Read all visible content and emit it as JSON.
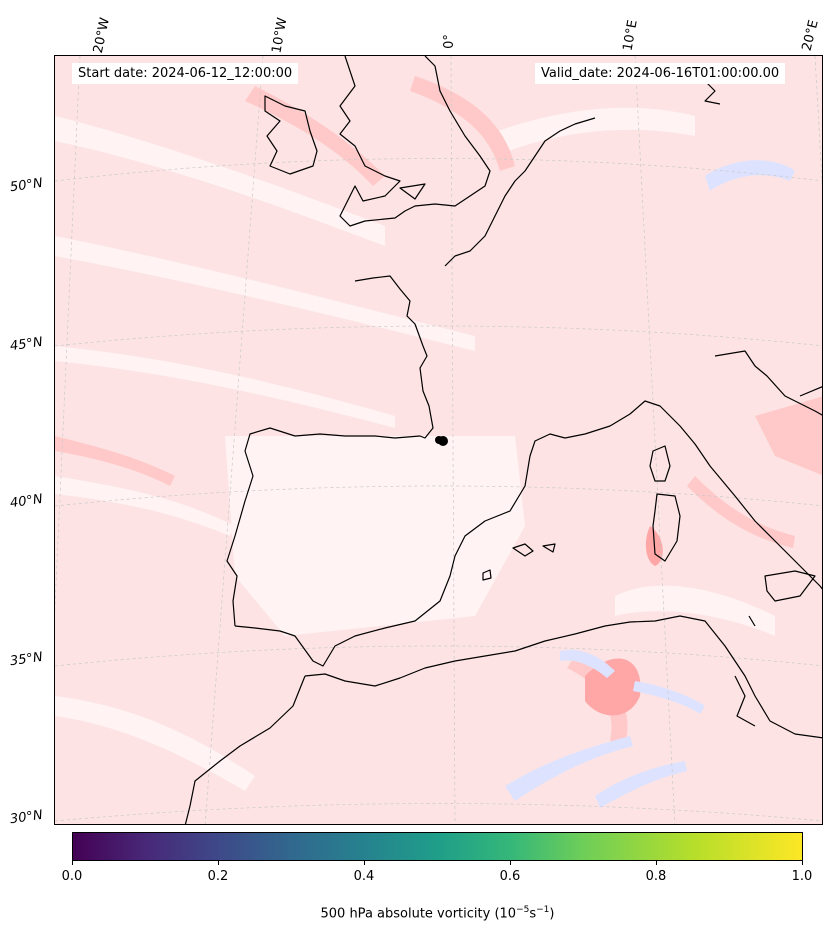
{
  "header": {
    "start_date": "Start date: 2024-06-12_12:00:00",
    "valid_date": "Valid_date: 2024-06-16T01:00:00.00"
  },
  "map": {
    "projection": "lambert-conic",
    "background_field": "500 hPa absolute vorticity",
    "colors": {
      "base_pink": "#fde0e0",
      "light_pink": "#fff0f0",
      "strong_pink": "#ffaaaa",
      "blue_patch": "#dbe3ff",
      "coastline": "#000000",
      "gridline": "#bbbbbb"
    },
    "lon_labels": [
      "20°W",
      "10°W",
      "0°",
      "10°E",
      "20°E"
    ],
    "lat_labels": [
      "50°N",
      "45°N",
      "40°N",
      "35°N",
      "30°N"
    ],
    "marker": {
      "name": "observation-point",
      "lon": 0.7,
      "lat": 41.6
    }
  },
  "colorbar": {
    "colormap": "viridis",
    "ticks": [
      "0.0",
      "0.2",
      "0.4",
      "0.6",
      "0.8",
      "1.0"
    ],
    "label": "500 hPa absolute vorticity (10",
    "label_exp1": "−5",
    "label_mid": "s",
    "label_exp2": "−1",
    "label_end": ")"
  }
}
